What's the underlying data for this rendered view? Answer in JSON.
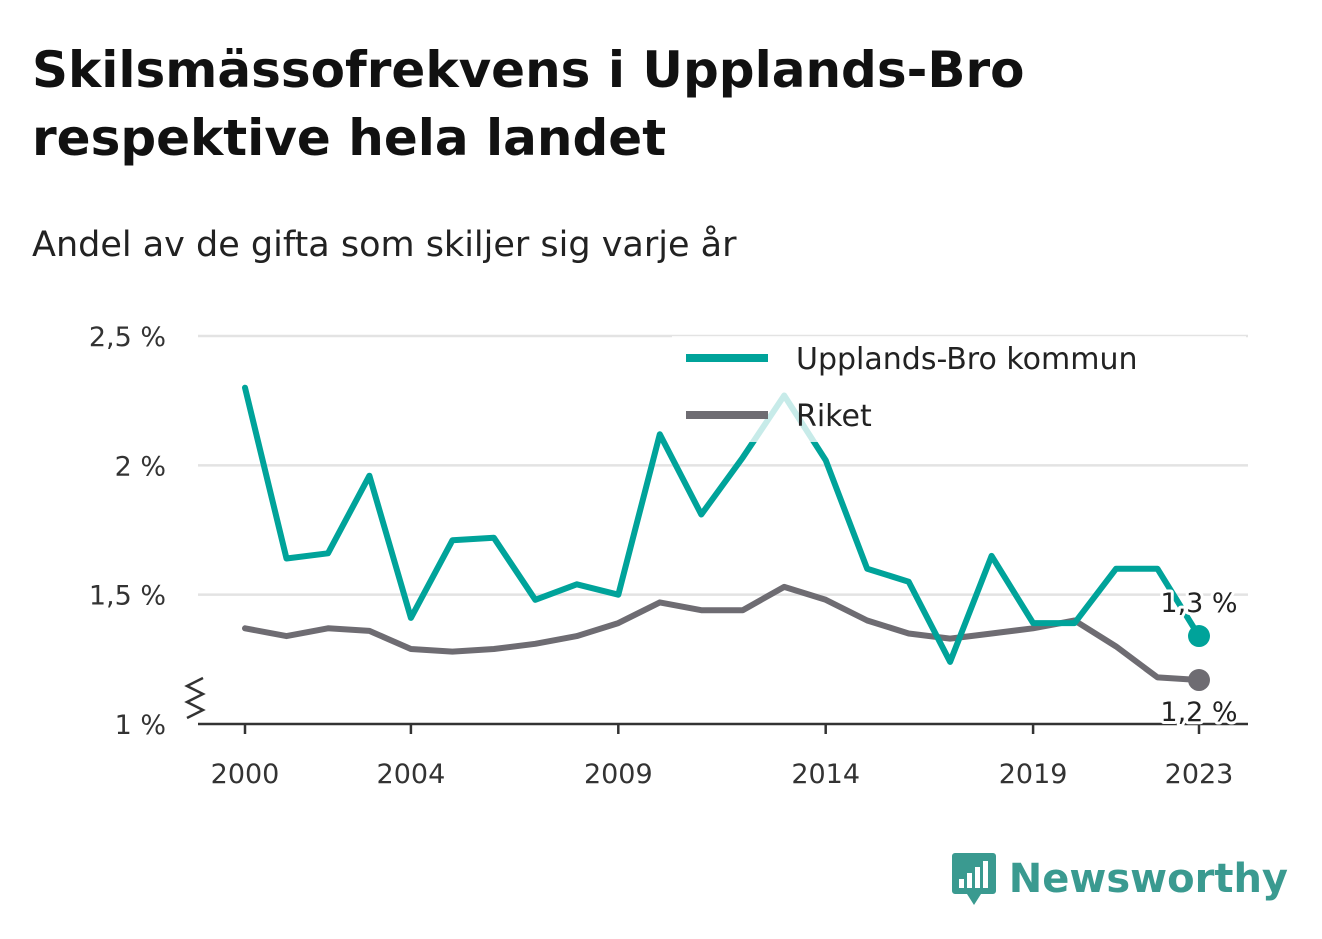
{
  "header": {
    "title": "Skilsmässofrekvens i Upplands-Bro respektive hela landet",
    "subtitle": "Andel av de gifta som skiljer sig varje år"
  },
  "brand": {
    "name": "Newsworthy",
    "color": "#3a9a90",
    "icon": "bar-chart-speech-icon"
  },
  "chart_data": {
    "type": "line",
    "x": [
      2000,
      2001,
      2002,
      2003,
      2004,
      2005,
      2006,
      2007,
      2008,
      2009,
      2010,
      2011,
      2012,
      2013,
      2014,
      2015,
      2016,
      2017,
      2018,
      2019,
      2020,
      2021,
      2022,
      2023
    ],
    "xticks": [
      2000,
      2004,
      2009,
      2014,
      2019,
      2023
    ],
    "xtick_labels": [
      "2000",
      "2004",
      "2009",
      "2014",
      "2019",
      "2023"
    ],
    "yticks": [
      1,
      1.5,
      2,
      2.5
    ],
    "ytick_labels": [
      "1 %",
      "1,5 %",
      "2 %",
      "2,5 %"
    ],
    "ylim": [
      1,
      2.5
    ],
    "y_axis_break": true,
    "grid": "horizontal",
    "legend_position": "top-right",
    "series": [
      {
        "name": "Upplands-Bro kommun",
        "color": "#00a39a",
        "values": [
          2.3,
          1.64,
          1.66,
          1.96,
          1.41,
          1.71,
          1.72,
          1.48,
          1.54,
          1.5,
          2.12,
          1.81,
          2.03,
          2.27,
          2.02,
          1.6,
          1.55,
          1.24,
          1.65,
          1.39,
          1.39,
          1.6,
          1.6,
          1.34
        ],
        "end_label": "1,3 %"
      },
      {
        "name": "Riket",
        "color": "#6e6c72",
        "values": [
          1.37,
          1.34,
          1.37,
          1.36,
          1.29,
          1.28,
          1.29,
          1.31,
          1.34,
          1.39,
          1.47,
          1.44,
          1.44,
          1.53,
          1.48,
          1.4,
          1.35,
          1.33,
          1.35,
          1.37,
          1.4,
          1.3,
          1.18,
          1.17
        ],
        "end_label": "1,2 %"
      }
    ]
  }
}
